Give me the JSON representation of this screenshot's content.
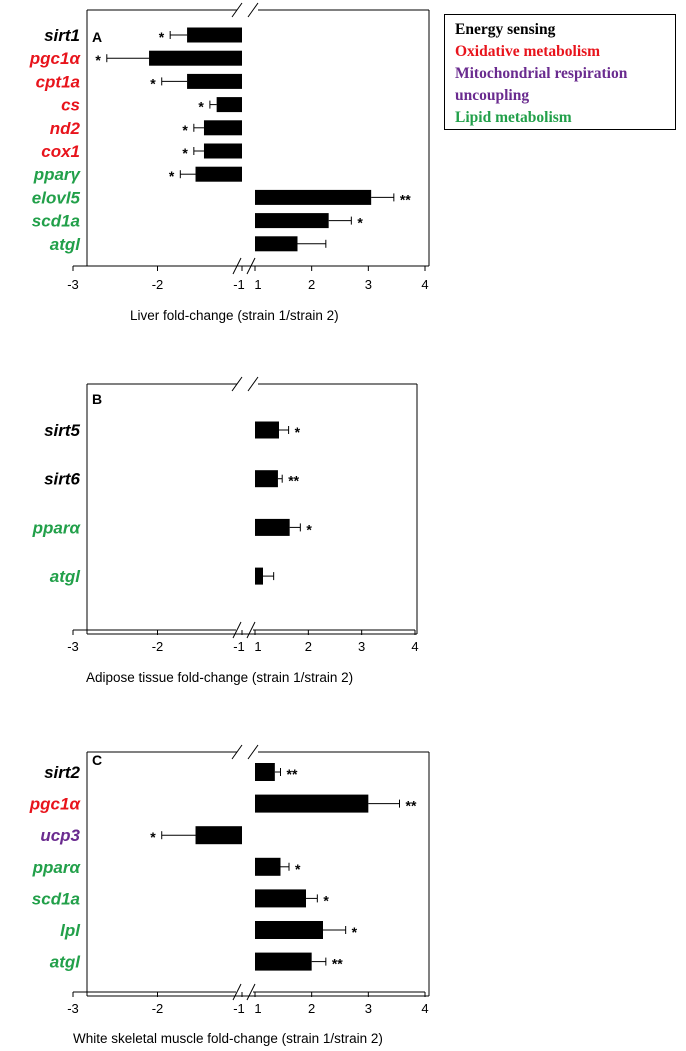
{
  "legend": {
    "items": [
      {
        "label": "Energy sensing",
        "color": "#000000"
      },
      {
        "label": "Oxidative metabolism",
        "color": "#e8141c"
      },
      {
        "label": "Mitochondrial respiration",
        "color": "#6a2b8f"
      },
      {
        "label": "uncoupling",
        "color": "#6a2b8f"
      },
      {
        "label": "Lipid metabolism",
        "color": "#22a04a"
      }
    ]
  },
  "chart_data": [
    {
      "type": "bar",
      "orientation": "horizontal",
      "panel_label": "A",
      "xlabel": "Liver fold-change (strain 1/strain 2)",
      "axis_break": "between -1 and 1",
      "xlim": [
        -3,
        4
      ],
      "xticks": [
        "-3",
        "-2",
        "-1",
        "1",
        "2",
        "3",
        "4"
      ],
      "bars": [
        {
          "gene": "sirt1",
          "category": "Energy sensing",
          "value": -1.65,
          "error": 0.2,
          "sig": "*"
        },
        {
          "gene": "pgc1α",
          "category": "Oxidative metabolism",
          "value": -2.1,
          "error": 0.5,
          "sig": "*"
        },
        {
          "gene": "cpt1a",
          "category": "Oxidative metabolism",
          "value": -1.65,
          "error": 0.3,
          "sig": "*"
        },
        {
          "gene": "cs",
          "category": "Oxidative metabolism",
          "value": -1.3,
          "error": 0.08,
          "sig": "*"
        },
        {
          "gene": "nd2",
          "category": "Oxidative metabolism",
          "value": -1.45,
          "error": 0.12,
          "sig": "*"
        },
        {
          "gene": "cox1",
          "category": "Oxidative metabolism",
          "value": -1.45,
          "error": 0.12,
          "sig": "*"
        },
        {
          "gene": "pparγ",
          "category": "Lipid metabolism",
          "value": -1.55,
          "error": 0.18,
          "sig": "*"
        },
        {
          "gene": "elovl5",
          "category": "Lipid metabolism",
          "value": 3.05,
          "error": 0.4,
          "sig": "**"
        },
        {
          "gene": "scd1a",
          "category": "Lipid metabolism",
          "value": 2.3,
          "error": 0.4,
          "sig": "*"
        },
        {
          "gene": "atgl",
          "category": "Lipid metabolism",
          "value": 1.75,
          "error": 0.5,
          "sig": ""
        }
      ]
    },
    {
      "type": "bar",
      "orientation": "horizontal",
      "panel_label": "B",
      "xlabel": "Adipose tissue fold-change (strain 1/strain 2)",
      "axis_break": "between -1 and 1",
      "xlim": [
        -3,
        4
      ],
      "xticks": [
        "-3",
        "-2",
        "-1",
        "1",
        "2",
        "3",
        "4"
      ],
      "bars": [
        {
          "gene": "sirt5",
          "category": "Energy sensing",
          "value": 1.45,
          "error": 0.18,
          "sig": "*"
        },
        {
          "gene": "sirt6",
          "category": "Energy sensing",
          "value": 1.43,
          "error": 0.08,
          "sig": "**"
        },
        {
          "gene": "pparα",
          "category": "Lipid metabolism",
          "value": 1.65,
          "error": 0.2,
          "sig": "*"
        },
        {
          "gene": "atgl",
          "category": "Lipid metabolism",
          "value": 1.15,
          "error": 0.2,
          "sig": ""
        }
      ]
    },
    {
      "type": "bar",
      "orientation": "horizontal",
      "panel_label": "C",
      "xlabel": "White skeletal muscle fold-change (strain 1/strain 2)",
      "axis_break": "between -1 and 1",
      "xlim": [
        -3,
        4
      ],
      "xticks": [
        "-3",
        "-2",
        "-1",
        "1",
        "2",
        "3",
        "4"
      ],
      "bars": [
        {
          "gene": "sirt2",
          "category": "Energy sensing",
          "value": 1.35,
          "error": 0.1,
          "sig": "**"
        },
        {
          "gene": "pgc1α",
          "category": "Oxidative metabolism",
          "value": 3.0,
          "error": 0.55,
          "sig": "**"
        },
        {
          "gene": "ucp3",
          "category": "Mitochondrial respiration uncoupling",
          "value": -1.55,
          "error": 0.4,
          "sig": "*"
        },
        {
          "gene": "pparα",
          "category": "Lipid metabolism",
          "value": 1.45,
          "error": 0.15,
          "sig": "*"
        },
        {
          "gene": "scd1a",
          "category": "Lipid metabolism",
          "value": 1.9,
          "error": 0.2,
          "sig": "*"
        },
        {
          "gene": "lpl",
          "category": "Lipid metabolism",
          "value": 2.2,
          "error": 0.4,
          "sig": "*"
        },
        {
          "gene": "atgl",
          "category": "Lipid metabolism",
          "value": 2.0,
          "error": 0.25,
          "sig": "**"
        }
      ]
    }
  ],
  "category_colors": {
    "Energy sensing": "#000000",
    "Oxidative metabolism": "#e8141c",
    "Mitochondrial respiration uncoupling": "#6a2b8f",
    "Lipid metabolism": "#22a04a"
  }
}
